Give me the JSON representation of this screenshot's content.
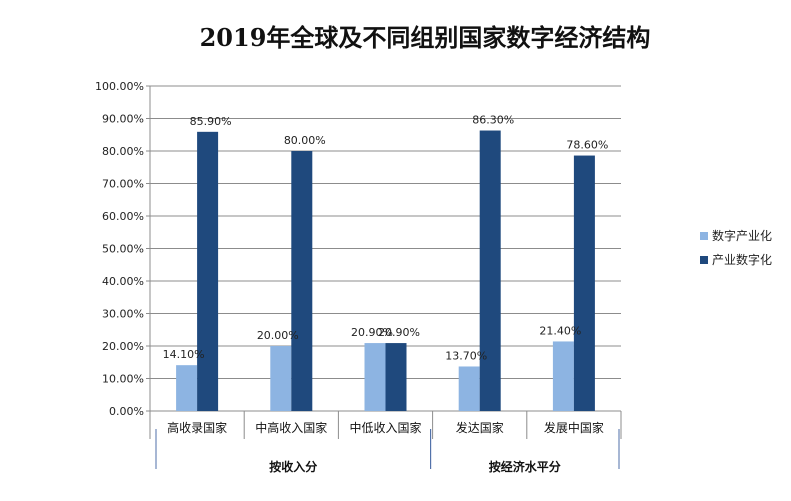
{
  "chart_data": {
    "type": "bar",
    "title": "2019年全球及不同组别国家数字经济结构",
    "categories": [
      "高收录国家",
      "中高收入国家",
      "中低收入国家",
      "发达国家",
      "发展中国家"
    ],
    "series": [
      {
        "name": "数字产业化",
        "color": "#8db4e2",
        "values": [
          14.1,
          20.0,
          20.9,
          13.7,
          21.4
        ],
        "labels": [
          "14.10%",
          "20.00%",
          "20.90%",
          "13.70%",
          "21.40%"
        ]
      },
      {
        "name": "产业数字化",
        "color": "#1f497d",
        "values": [
          85.9,
          80.0,
          20.9,
          86.3,
          78.6
        ],
        "labels": [
          "85.90%",
          "80.00%",
          "20.90%",
          "86.30%",
          "78.60%"
        ]
      }
    ],
    "ylim": [
      0,
      100
    ],
    "yticks": [
      "0.00%",
      "10.00%",
      "20.00%",
      "30.00%",
      "40.00%",
      "50.00%",
      "60.00%",
      "70.00%",
      "80.00%",
      "90.00%",
      "100.00%"
    ],
    "grid": true,
    "legend_position": "right",
    "groups": [
      {
        "label": "按收入分",
        "span": [
          0,
          2
        ]
      },
      {
        "label": "按经济水平分",
        "span": [
          3,
          4
        ]
      }
    ]
  }
}
